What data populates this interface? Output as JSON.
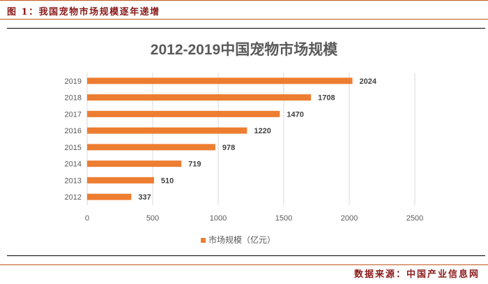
{
  "figure": {
    "caption": "图 1：我国宠物市场规模逐年递增",
    "source": "数据来源：中国产业信息网"
  },
  "chart_data": {
    "type": "bar",
    "orientation": "horizontal",
    "title": "2012-2019中国宠物市场规模",
    "categories": [
      "2019",
      "2018",
      "2017",
      "2016",
      "2015",
      "2014",
      "2013",
      "2012"
    ],
    "series": [
      {
        "name": "市场规模（亿元）",
        "values": [
          2024,
          1708,
          1470,
          1220,
          978,
          719,
          510,
          337
        ]
      }
    ],
    "xlim": [
      0,
      2500
    ],
    "xticks": [
      "0",
      "500",
      "1000",
      "1500",
      "2000",
      "2500"
    ],
    "grid": true,
    "legend_position": "bottom",
    "color": "#ed7d31"
  }
}
